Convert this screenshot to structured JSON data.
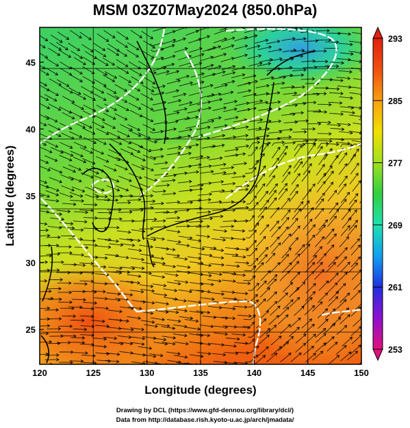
{
  "title": "MSM 03Z07May2024 (850.0hPa)",
  "chart_data": {
    "type": "heatmap",
    "variable": "temperature with streamlines and isotherms",
    "xlabel": "Longitude (degrees)",
    "ylabel": "Latitude  (degrees)",
    "xlim": [
      120,
      150
    ],
    "ylim": [
      22.4,
      47.6
    ],
    "xticks": [
      "120",
      "125",
      "130",
      "135",
      "140",
      "145",
      "150"
    ],
    "yticks": [
      "25",
      "30",
      "35",
      "40",
      "45"
    ],
    "xtick_values": [
      120,
      125,
      130,
      135,
      140,
      145,
      150
    ],
    "ytick_values": [
      25,
      30,
      35,
      40,
      45
    ],
    "colorbar": {
      "range": [
        253,
        293
      ],
      "ticks": [
        "293",
        "285",
        "277",
        "269",
        "261",
        "253"
      ],
      "tick_values": [
        293,
        285,
        277,
        269,
        261,
        253
      ],
      "colors": [
        "#e0107a",
        "#9010d0",
        "#2030e0",
        "#10a0f0",
        "#20e0b0",
        "#30d040",
        "#a0e020",
        "#f0e000",
        "#f8a010",
        "#f05010",
        "#e02010"
      ]
    },
    "regions": [
      {
        "name": "northeast",
        "approx_value": 271
      },
      {
        "name": "north",
        "approx_value": 277
      },
      {
        "name": "center",
        "approx_value": 280
      },
      {
        "name": "southeast",
        "approx_value": 286
      },
      {
        "name": "southwest",
        "approx_value": 289
      }
    ],
    "grid": true
  },
  "credits": {
    "line1": "Drawing by DCL (https://www.gfd-dennou.org/library/dcl/)",
    "line2": "Data from http://database.rish.kyoto-u.ac.jp/arch/jmadata/"
  }
}
